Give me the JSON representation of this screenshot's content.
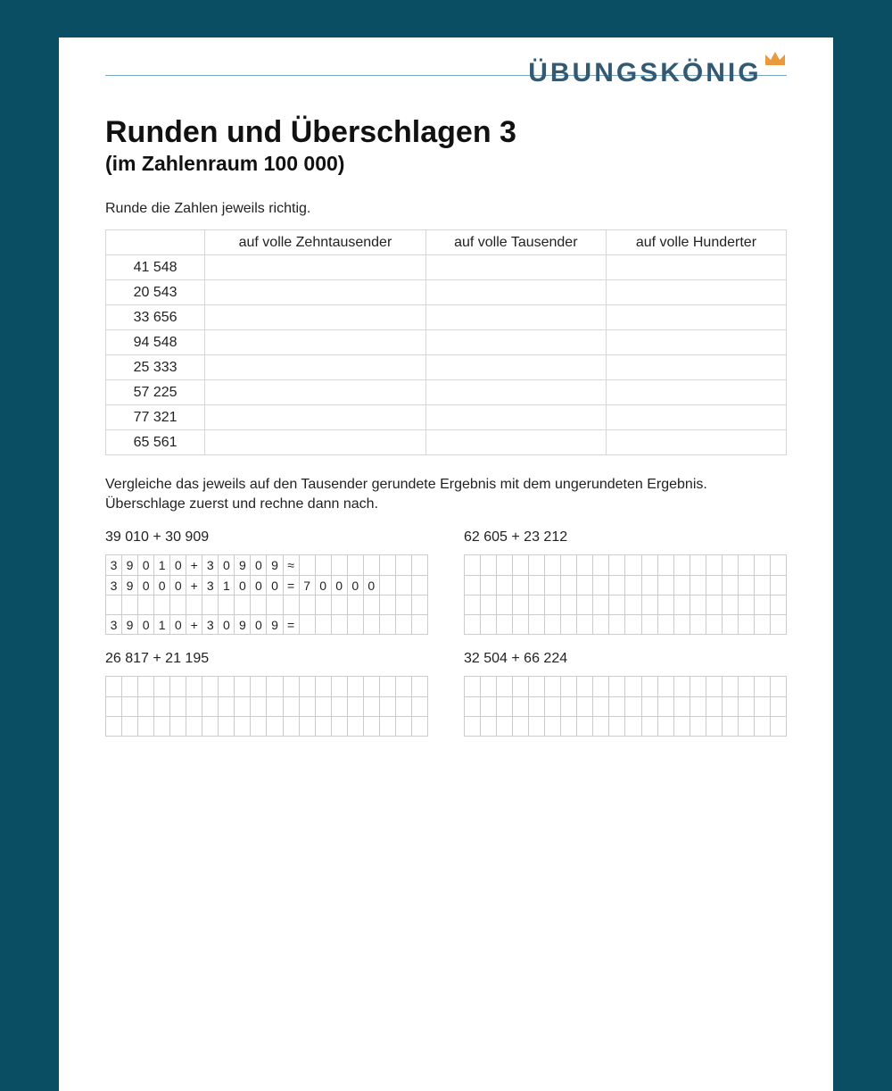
{
  "brand": {
    "name": "ÜBUNGSKÖNIG",
    "crown_fill": "#e89a3c",
    "text_color": "#335a72"
  },
  "title": "Runden und Überschlagen 3",
  "subtitle": "(im Zahlenraum 100 000)",
  "instruction1": "Runde die Zahlen jeweils richtig.",
  "rounding_table": {
    "columns": [
      "",
      "auf volle Zehntausender",
      "auf volle Tausender",
      "auf volle Hunderter"
    ],
    "rows": [
      "41 548",
      "20 543",
      "33 656",
      "94 548",
      "25 333",
      "57 225",
      "77 321",
      "65 561"
    ]
  },
  "instruction2": "Vergleiche das jeweils auf den Tausender gerundete Ergebnis mit dem ungerundeten Ergebnis. Überschlage zuerst und rechne dann nach.",
  "exercises": [
    {
      "label": "39 010 + 30 909",
      "grid_cols": 20,
      "rows": [
        [
          "3",
          "9",
          "0",
          "1",
          "0",
          "+",
          "3",
          "0",
          "9",
          "0",
          "9",
          "≈",
          "",
          "",
          "",
          "",
          "",
          "",
          "",
          ""
        ],
        [
          "3",
          "9",
          "0",
          "0",
          "0",
          "+",
          "3",
          "1",
          "0",
          "0",
          "0",
          "=",
          "7",
          "0",
          "0",
          "0",
          "0",
          "",
          "",
          ""
        ],
        [
          "",
          "",
          "",
          "",
          "",
          "",
          "",
          "",
          "",
          "",
          "",
          "",
          "",
          "",
          "",
          "",
          "",
          "",
          "",
          ""
        ],
        [
          "3",
          "9",
          "0",
          "1",
          "0",
          "+",
          "3",
          "0",
          "9",
          "0",
          "9",
          "=",
          "",
          "",
          "",
          "",
          "",
          "",
          "",
          ""
        ]
      ]
    },
    {
      "label": "62 605 + 23 212",
      "grid_cols": 20,
      "rows": [
        [
          "",
          "",
          "",
          "",
          "",
          "",
          "",
          "",
          "",
          "",
          "",
          "",
          "",
          "",
          "",
          "",
          "",
          "",
          "",
          ""
        ],
        [
          "",
          "",
          "",
          "",
          "",
          "",
          "",
          "",
          "",
          "",
          "",
          "",
          "",
          "",
          "",
          "",
          "",
          "",
          "",
          ""
        ],
        [
          "",
          "",
          "",
          "",
          "",
          "",
          "",
          "",
          "",
          "",
          "",
          "",
          "",
          "",
          "",
          "",
          "",
          "",
          "",
          ""
        ],
        [
          "",
          "",
          "",
          "",
          "",
          "",
          "",
          "",
          "",
          "",
          "",
          "",
          "",
          "",
          "",
          "",
          "",
          "",
          "",
          ""
        ]
      ]
    },
    {
      "label": "26 817 + 21 195",
      "grid_cols": 20,
      "rows": [
        [
          "",
          "",
          "",
          "",
          "",
          "",
          "",
          "",
          "",
          "",
          "",
          "",
          "",
          "",
          "",
          "",
          "",
          "",
          "",
          ""
        ],
        [
          "",
          "",
          "",
          "",
          "",
          "",
          "",
          "",
          "",
          "",
          "",
          "",
          "",
          "",
          "",
          "",
          "",
          "",
          "",
          ""
        ],
        [
          "",
          "",
          "",
          "",
          "",
          "",
          "",
          "",
          "",
          "",
          "",
          "",
          "",
          "",
          "",
          "",
          "",
          "",
          "",
          ""
        ]
      ]
    },
    {
      "label": "32 504 + 66 224",
      "grid_cols": 20,
      "rows": [
        [
          "",
          "",
          "",
          "",
          "",
          "",
          "",
          "",
          "",
          "",
          "",
          "",
          "",
          "",
          "",
          "",
          "",
          "",
          "",
          ""
        ],
        [
          "",
          "",
          "",
          "",
          "",
          "",
          "",
          "",
          "",
          "",
          "",
          "",
          "",
          "",
          "",
          "",
          "",
          "",
          "",
          ""
        ],
        [
          "",
          "",
          "",
          "",
          "",
          "",
          "",
          "",
          "",
          "",
          "",
          "",
          "",
          "",
          "",
          "",
          "",
          "",
          "",
          ""
        ]
      ]
    }
  ],
  "colors": {
    "page_bg": "#0a4e63",
    "paper_bg": "#ffffff",
    "rule": "#7aa7c0",
    "grid_border": "#cccccc",
    "table_border": "#d6d6d6"
  }
}
